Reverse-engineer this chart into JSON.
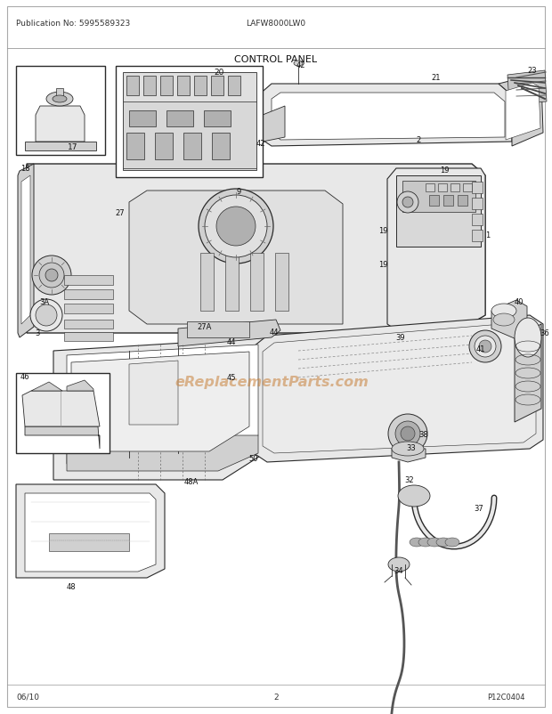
{
  "title": "CONTROL PANEL",
  "model": "LAFW8000LW0",
  "pub_no": "Publication No: 5995589323",
  "date": "06/10",
  "page": "2",
  "ref_code": "P12C0404",
  "bg_color": "#ffffff",
  "fig_width": 6.2,
  "fig_height": 8.03,
  "dpi": 100,
  "watermark_text": "eReplacementParts.com",
  "watermark_color": "#c8813a",
  "watermark_alpha": 0.55,
  "watermark_fontsize": 11.5,
  "line_color": "#2a2a2a",
  "fill_light": "#e8e8e8",
  "fill_mid": "#d0d0d0",
  "fill_dark": "#b0b0b0",
  "label_fontsize": 6.0
}
